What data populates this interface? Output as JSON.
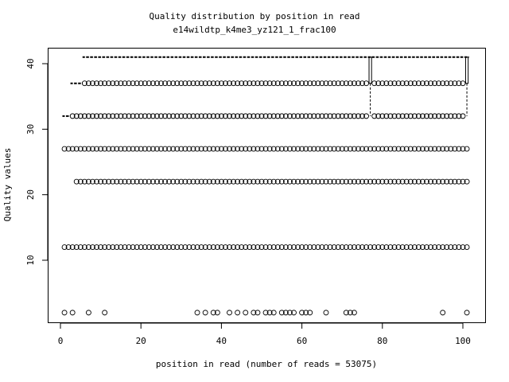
{
  "chart_data": {
    "type": "boxplot",
    "title": "Quality distribution by position in read",
    "subtitle": "e14wildtp_k4me3_yz121_1_frac100",
    "xlabel": "position in read (number of reads = 53075)",
    "ylabel": "Quality values",
    "x_ticks": [
      0,
      20,
      40,
      60,
      80,
      100
    ],
    "y_ticks": [
      10,
      20,
      30,
      40
    ],
    "positions": [
      1,
      101
    ],
    "box_groups": [
      {
        "from": 1,
        "to": 2,
        "stats": [
          32,
          32,
          32,
          32,
          32
        ],
        "outliers": [
          27,
          12
        ]
      },
      {
        "from": 3,
        "to": 3,
        "stats": [
          37,
          37,
          37,
          37,
          37
        ],
        "outliers": [
          32,
          27,
          12
        ]
      },
      {
        "from": 4,
        "to": 5,
        "stats": [
          37,
          37,
          37,
          37,
          37
        ],
        "outliers": [
          32,
          27,
          22,
          12
        ]
      },
      {
        "from": 6,
        "to": 76,
        "stats": [
          41,
          41,
          41,
          41,
          41
        ],
        "outliers": [
          37,
          32,
          27,
          22,
          12
        ]
      },
      {
        "from": 77,
        "to": 77,
        "stats": [
          32,
          37,
          41,
          41,
          41
        ],
        "outliers": [
          27,
          22,
          12
        ]
      },
      {
        "from": 78,
        "to": 100,
        "stats": [
          41,
          41,
          41,
          41,
          41
        ],
        "outliers": [
          37,
          32,
          27,
          22,
          12
        ]
      },
      {
        "from": 101,
        "to": 101,
        "stats": [
          32,
          37,
          41,
          41,
          41
        ],
        "outliers": [
          27,
          22,
          12
        ]
      }
    ],
    "low_outlier_value": 2,
    "low_outlier_positions": [
      1,
      3,
      7,
      11,
      34,
      36,
      38,
      39,
      42,
      44,
      46,
      48,
      49,
      51,
      52,
      53,
      55,
      56,
      57,
      58,
      60,
      61,
      62,
      66,
      71,
      72,
      73,
      95,
      101
    ],
    "colors": {
      "line": "#000000",
      "background": "#ffffff"
    }
  }
}
